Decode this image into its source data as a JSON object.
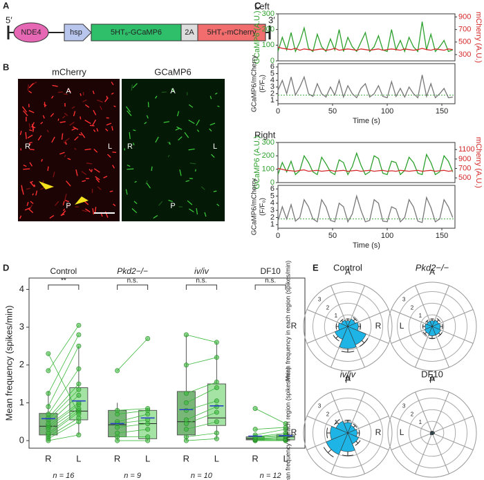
{
  "panel_labels": [
    "A",
    "B",
    "C",
    "D",
    "E"
  ],
  "construct": {
    "five_prime": "5′",
    "three_prime": "3′",
    "parts": [
      "NDE4",
      "hsp",
      "5HT₆-GCaMP6",
      "2A",
      "5HT₆-mCherry"
    ]
  },
  "microscopy": {
    "channels": [
      "mCherry",
      "GCaMP6"
    ],
    "directions": [
      "A",
      "P",
      "R",
      "L"
    ]
  },
  "chart_data": [
    {
      "type": "line",
      "title": "Left",
      "ylabel": "GCaMP6 (A.U.)",
      "y2label": "mCherry (A.U.)",
      "xlim": [
        0,
        162
      ],
      "ylim": [
        0,
        300
      ],
      "yticks": [
        0,
        100,
        200,
        300
      ],
      "y2lim": [
        200,
        950
      ],
      "y2ticks": [
        300,
        500,
        700,
        900
      ],
      "x": [
        0,
        4,
        8,
        12,
        16,
        20,
        24,
        28,
        32,
        36,
        40,
        44,
        48,
        52,
        56,
        60,
        64,
        68,
        72,
        76,
        80,
        84,
        88,
        92,
        96,
        100,
        104,
        108,
        112,
        116,
        120,
        124,
        128,
        132,
        136,
        140,
        144,
        148,
        152,
        156,
        160
      ],
      "series": [
        {
          "color": "#2ca02c",
          "values": [
            60,
            150,
            70,
            180,
            60,
            120,
            210,
            80,
            60,
            170,
            90,
            60,
            140,
            70,
            200,
            60,
            150,
            90,
            60,
            120,
            180,
            60,
            90,
            160,
            70,
            60,
            200,
            70,
            130,
            60,
            150,
            90,
            60,
            250,
            70,
            170,
            60,
            90,
            130,
            60,
            70
          ]
        },
        {
          "color": "#d62728",
          "axis": "y2",
          "values": [
            420,
            400,
            390,
            380,
            400,
            370,
            390,
            380,
            370,
            380,
            390,
            370,
            380,
            400,
            370,
            380,
            390,
            380,
            370,
            390,
            380,
            370,
            380,
            390,
            370,
            380,
            390,
            380,
            370,
            390,
            380,
            370,
            380,
            400,
            380,
            370,
            390,
            380,
            370,
            390,
            380
          ]
        }
      ]
    },
    {
      "type": "line",
      "ylabel": [
        "GCaMP6/mCherry",
        "(F/F₀)"
      ],
      "xlabel": "Time (s)",
      "xlim": [
        0,
        162
      ],
      "ylim": [
        0.5,
        6.5
      ],
      "yticks": [
        1,
        2,
        3,
        4,
        5,
        6
      ],
      "xticks": [
        0,
        50,
        100,
        150
      ],
      "reference_line": 1.8,
      "x": [
        0,
        4,
        8,
        12,
        16,
        20,
        24,
        28,
        32,
        36,
        40,
        44,
        48,
        52,
        56,
        60,
        64,
        68,
        72,
        76,
        80,
        84,
        88,
        92,
        96,
        100,
        104,
        108,
        112,
        116,
        120,
        124,
        128,
        132,
        136,
        140,
        144,
        148,
        152,
        156,
        160
      ],
      "series": [
        {
          "color": "#777777",
          "values": [
            2.5,
            4,
            2,
            4.5,
            1.8,
            3,
            4.5,
            2,
            1.6,
            3.5,
            2,
            1.5,
            3,
            1.8,
            4,
            1.5,
            3.2,
            2,
            1.4,
            2.8,
            3.5,
            1.5,
            2,
            3.2,
            1.6,
            1.4,
            3.8,
            1.6,
            2.8,
            1.5,
            3,
            2,
            1.4,
            4.8,
            1.6,
            3.5,
            1.4,
            2,
            2.8,
            1.4,
            1.5
          ]
        }
      ]
    },
    {
      "type": "line",
      "title": "Right",
      "ylabel": "GCaMP6 (A.U.)",
      "y2label": "mCherry (A.U.)",
      "xlim": [
        0,
        162
      ],
      "ylim": [
        0,
        300
      ],
      "yticks": [
        0,
        100,
        200,
        300
      ],
      "y2lim": [
        400,
        1250
      ],
      "y2ticks": [
        500,
        700,
        900,
        1100
      ],
      "x": [
        0,
        4,
        8,
        12,
        16,
        20,
        24,
        28,
        32,
        36,
        40,
        44,
        48,
        52,
        56,
        60,
        64,
        68,
        72,
        76,
        80,
        84,
        88,
        92,
        96,
        100,
        104,
        108,
        112,
        116,
        120,
        124,
        128,
        132,
        136,
        140,
        144,
        148,
        152,
        156,
        160
      ],
      "series": [
        {
          "color": "#2ca02c",
          "values": [
            60,
            150,
            80,
            160,
            60,
            90,
            200,
            150,
            80,
            60,
            190,
            140,
            80,
            60,
            170,
            150,
            60,
            120,
            220,
            130,
            60,
            80,
            200,
            180,
            70,
            60,
            160,
            150,
            60,
            90,
            190,
            150,
            70,
            60,
            210,
            150,
            60,
            80,
            200,
            160,
            80
          ]
        },
        {
          "color": "#d62728",
          "axis": "y2",
          "values": [
            700,
            680,
            660,
            650,
            640,
            660,
            670,
            640,
            650,
            660,
            640,
            650,
            660,
            640,
            650,
            660,
            640,
            650,
            660,
            640,
            650,
            660,
            640,
            650,
            660,
            640,
            650,
            640,
            660,
            650,
            640,
            650,
            660,
            640,
            650,
            660,
            640,
            650,
            660,
            640,
            650
          ]
        }
      ]
    },
    {
      "type": "line",
      "ylabel": [
        "GCaMP6/mCherry",
        "(F/F₀)"
      ],
      "xlabel": "Time (s)",
      "xlim": [
        0,
        162
      ],
      "ylim": [
        0.5,
        6.5
      ],
      "yticks": [
        1,
        2,
        3,
        4,
        5,
        6
      ],
      "xticks": [
        0,
        50,
        100,
        150
      ],
      "reference_line": 1.8,
      "x": [
        0,
        4,
        8,
        12,
        16,
        20,
        24,
        28,
        32,
        36,
        40,
        44,
        48,
        52,
        56,
        60,
        64,
        68,
        72,
        76,
        80,
        84,
        88,
        92,
        96,
        100,
        104,
        108,
        112,
        116,
        120,
        124,
        128,
        132,
        136,
        140,
        144,
        148,
        152,
        156,
        160
      ],
      "series": [
        {
          "color": "#777777",
          "values": [
            1.5,
            3.5,
            1.8,
            3.8,
            1.5,
            2,
            4.5,
            3.5,
            1.8,
            1.4,
            4.5,
            3.5,
            1.6,
            1.4,
            4,
            3.5,
            1.4,
            2.5,
            5,
            3,
            1.4,
            1.6,
            4.5,
            4,
            1.5,
            1.4,
            3.5,
            3.2,
            1.4,
            2,
            4.5,
            3.5,
            1.5,
            1.3,
            4.8,
            3.4,
            1.4,
            1.8,
            4.5,
            3.5,
            2
          ]
        }
      ]
    },
    {
      "type": "box",
      "ylabel": "Mean frequency (spikes/min)",
      "ylim": [
        -0.2,
        4.3
      ],
      "yticks": [
        0,
        1,
        2,
        3,
        4
      ],
      "colors": [
        "#4c9f4c",
        "#86d986"
      ],
      "mean_color": "#2840c8",
      "groups": [
        {
          "name": "Control",
          "categories": [
            "R",
            "L"
          ],
          "n_label": "n = 16",
          "significance": "**",
          "boxes": [
            {
              "whisker_low": 0,
              "q1": 0.15,
              "median": 0.38,
              "q3": 0.72,
              "whisker_high": 1.3,
              "mean": 0.58
            },
            {
              "whisker_low": 0.15,
              "q1": 0.55,
              "median": 0.78,
              "q3": 1.4,
              "whisker_high": 2.5,
              "mean": 1.05
            }
          ],
          "values": [
            [
              0,
              0.05,
              0.1,
              0.15,
              0.2,
              0.3,
              0.35,
              0.4,
              0.45,
              0.55,
              0.6,
              0.7,
              0.9,
              1.25,
              1.85,
              2.3
            ],
            [
              0.15,
              0.5,
              0.6,
              0.75,
              0.8,
              0.85,
              0.95,
              1.0,
              1.2,
              1.35,
              1.5,
              1.9,
              2.5,
              2.8,
              3.05,
              0.7
            ]
          ]
        },
        {
          "name": "Pkd2−/−",
          "italic": true,
          "categories": [
            "R",
            "L"
          ],
          "n_label": "n = 9",
          "significance": "n.s.",
          "boxes": [
            {
              "whisker_low": 0,
              "q1": 0.1,
              "median": 0.42,
              "q3": 0.8,
              "whisker_high": 1.0,
              "mean": 0.45
            },
            {
              "whisker_low": 0,
              "q1": 0.05,
              "median": 0.45,
              "q3": 0.8,
              "whisker_high": 0.85,
              "mean": 0.6
            }
          ],
          "values": [
            [
              0,
              0.1,
              0.2,
              0.35,
              0.45,
              0.5,
              0.7,
              0.8,
              1.85
            ],
            [
              0,
              0.1,
              0.3,
              0.45,
              0.55,
              0.7,
              0.8,
              0.85,
              2.7
            ]
          ]
        },
        {
          "name": "iv/iv",
          "italic": true,
          "categories": [
            "R",
            "L"
          ],
          "n_label": "n = 10",
          "significance": "n.s.",
          "boxes": [
            {
              "whisker_low": 0,
              "q1": 0.15,
              "median": 0.5,
              "q3": 1.3,
              "whisker_high": 2.8,
              "mean": 0.82
            },
            {
              "whisker_low": 0.05,
              "q1": 0.4,
              "median": 0.6,
              "q3": 1.5,
              "whisker_high": 2.6,
              "mean": 0.92
            }
          ],
          "values": [
            [
              0,
              0.1,
              0.3,
              0.45,
              0.55,
              0.8,
              1.0,
              1.25,
              2.0,
              2.8
            ],
            [
              0.05,
              0.2,
              0.5,
              0.75,
              0.9,
              1.05,
              1.4,
              1.55,
              2.2,
              2.6
            ]
          ]
        },
        {
          "name": "DF10",
          "categories": [
            "R",
            "L"
          ],
          "n_label": "n = 12",
          "significance": "n.s.",
          "boxes": [
            {
              "whisker_low": 0,
              "q1": 0.02,
              "median": 0.05,
              "q3": 0.1,
              "whisker_high": 0.15,
              "mean": 0.12
            },
            {
              "whisker_low": 0,
              "q1": 0.02,
              "median": 0.1,
              "q3": 0.15,
              "whisker_high": 0.35,
              "mean": 0.13
            }
          ],
          "values": [
            [
              0,
              0,
              0.02,
              0.03,
              0.05,
              0.05,
              0.08,
              0.1,
              0.1,
              0.15,
              0.3,
              0.85
            ],
            [
              0,
              0,
              0.02,
              0.05,
              0.05,
              0.1,
              0.12,
              0.15,
              0.2,
              0.3,
              0.35,
              0.45
            ]
          ]
        }
      ]
    },
    {
      "type": "polar",
      "title": "Control",
      "ylabel": "Mean frequency in each region (spikes/min)",
      "directions": [
        "A",
        "L",
        "P",
        "R"
      ],
      "rlim": [
        0,
        3.8
      ],
      "rticks": [
        1,
        2,
        3
      ],
      "color": "#1eb4e6",
      "values": [
        0.5,
        0.7,
        0.9,
        1.7,
        1.9,
        1.2,
        0.8,
        0.6
      ],
      "errors": [
        0.15,
        0.2,
        0.2,
        0.3,
        0.3,
        0.25,
        0.2,
        0.15
      ]
    },
    {
      "type": "polar",
      "title": "Pkd2−/−",
      "italic": true,
      "directions": [
        "A",
        "L",
        "P",
        "R"
      ],
      "rlim": [
        0,
        3.8
      ],
      "rticks": [
        1,
        2,
        3
      ],
      "color": "#1eb4e6",
      "values": [
        0.5,
        0.6,
        0.7,
        0.8,
        0.8,
        0.7,
        0.6,
        0.5
      ],
      "errors": [
        0.15,
        0.2,
        0.2,
        0.2,
        0.25,
        0.2,
        0.2,
        0.15
      ]
    },
    {
      "type": "polar",
      "title": "iv/iv",
      "italic": true,
      "ylabel": "Mean frequency in each region (spikes/min)",
      "directions": [
        "A",
        "L",
        "P",
        "R"
      ],
      "rlim": [
        0,
        3.8
      ],
      "rticks": [
        1,
        2,
        3
      ],
      "color": "#1eb4e6",
      "values": [
        0.9,
        0.7,
        0.8,
        1.0,
        1.6,
        2.0,
        1.5,
        1.1
      ],
      "errors": [
        0.2,
        0.2,
        0.2,
        0.25,
        0.35,
        0.4,
        0.3,
        0.25
      ]
    },
    {
      "type": "polar",
      "title": "DF10",
      "directions": [
        "A",
        "L",
        "P",
        "R"
      ],
      "rlim": [
        0,
        3.8
      ],
      "rticks": [
        1,
        2,
        3
      ],
      "color": "#1eb4e6",
      "values": [
        0.1,
        0.12,
        0.15,
        0.12,
        0.1,
        0.15,
        0.1,
        0.12
      ],
      "errors": [
        0.05,
        0.05,
        0.05,
        0.05,
        0.05,
        0.05,
        0.05,
        0.05
      ]
    }
  ]
}
